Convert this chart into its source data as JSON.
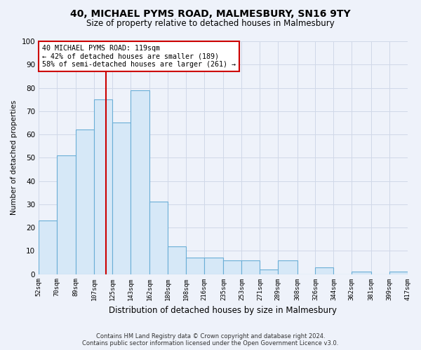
{
  "title": "40, MICHAEL PYMS ROAD, MALMESBURY, SN16 9TY",
  "subtitle": "Size of property relative to detached houses in Malmesbury",
  "xlabel": "Distribution of detached houses by size in Malmesbury",
  "ylabel": "Number of detached properties",
  "footer_line1": "Contains HM Land Registry data © Crown copyright and database right 2024.",
  "footer_line2": "Contains public sector information licensed under the Open Government Licence v3.0.",
  "bins": [
    52,
    70,
    89,
    107,
    125,
    143,
    162,
    180,
    198,
    216,
    235,
    253,
    271,
    289,
    308,
    326,
    344,
    362,
    381,
    399,
    417
  ],
  "bar_heights": [
    23,
    51,
    62,
    75,
    65,
    79,
    31,
    12,
    7,
    7,
    6,
    6,
    2,
    6,
    0,
    3,
    0,
    1,
    0,
    1
  ],
  "bar_color": "#d6e8f7",
  "bar_edge_color": "#6aaed6",
  "grid_color": "#d0d8e8",
  "bg_color": "#eef2fa",
  "vline_x": 119,
  "vline_color": "#cc0000",
  "annotation_text": "40 MICHAEL PYMS ROAD: 119sqm\n← 42% of detached houses are smaller (189)\n58% of semi-detached houses are larger (261) →",
  "annotation_box_color": "#ffffff",
  "annotation_box_edge": "#cc0000",
  "ylim": [
    0,
    100
  ],
  "yticks": [
    0,
    10,
    20,
    30,
    40,
    50,
    60,
    70,
    80,
    90,
    100
  ],
  "title_fontsize": 10,
  "subtitle_fontsize": 8.5
}
